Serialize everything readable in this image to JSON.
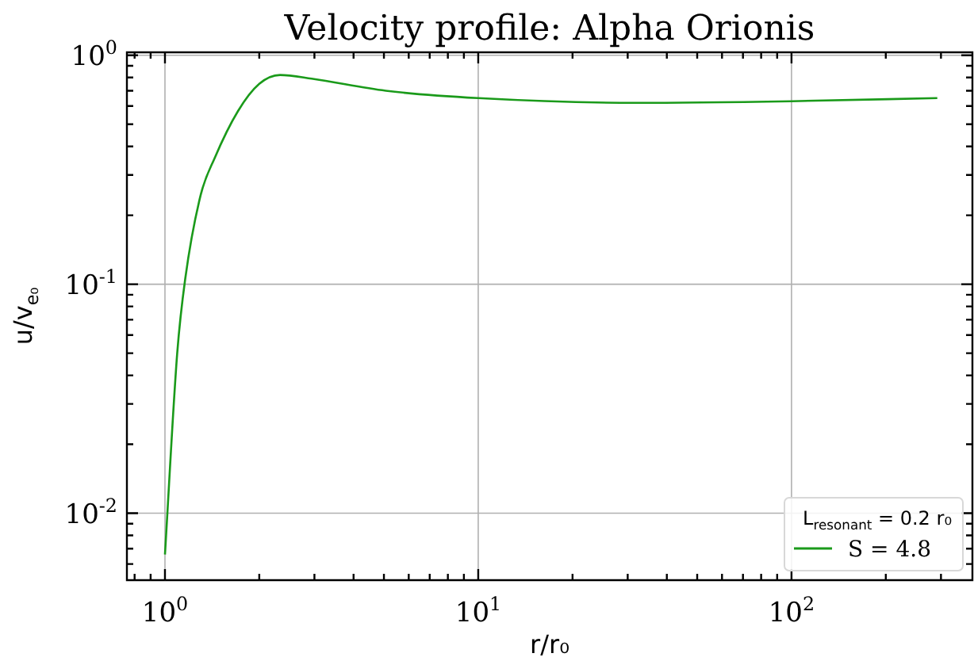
{
  "chart_data": {
    "type": "line",
    "title": "Velocity profile: Alpha Orionis",
    "xlabel": "r/r₀",
    "ylabel": "u/v$_{e₀}$",
    "legend_title": "L$_{resonant}$ = 0.2 r₀",
    "x": [
      1.0,
      1.094,
      1.16,
      1.3,
      1.44,
      1.71,
      2.0,
      2.33,
      2.94,
      5.07,
      10,
      31.6,
      100,
      292
    ],
    "series": [
      {
        "name": "S = 4.8",
        "color": "#1a9a1a",
        "values": [
          0.0066,
          0.0498,
          0.105,
          0.245,
          0.355,
          0.57,
          0.75,
          0.82,
          0.79,
          0.7,
          0.65,
          0.62,
          0.63,
          0.65
        ]
      }
    ],
    "log": "xy",
    "xlim": [
      0.756,
      378
    ],
    "ylim": [
      0.0051,
      1.03
    ],
    "xticks": [
      {
        "value": 0.8,
        "label": null
      },
      {
        "value": 0.9,
        "label": null
      },
      {
        "value": 1,
        "label": "10$^{0}$"
      },
      {
        "value": 2,
        "label": null
      },
      {
        "value": 3,
        "label": null
      },
      {
        "value": 4,
        "label": null
      },
      {
        "value": 5,
        "label": null
      },
      {
        "value": 6,
        "label": null
      },
      {
        "value": 7,
        "label": null
      },
      {
        "value": 8,
        "label": null
      },
      {
        "value": 9,
        "label": null
      },
      {
        "value": 10,
        "label": "10$^{1}$"
      },
      {
        "value": 20,
        "label": null
      },
      {
        "value": 30,
        "label": null
      },
      {
        "value": 40,
        "label": null
      },
      {
        "value": 50,
        "label": null
      },
      {
        "value": 60,
        "label": null
      },
      {
        "value": 70,
        "label": null
      },
      {
        "value": 80,
        "label": null
      },
      {
        "value": 90,
        "label": null
      },
      {
        "value": 100,
        "label": "10$^{2}$"
      },
      {
        "value": 200,
        "label": null
      },
      {
        "value": 300,
        "label": null
      }
    ],
    "yticks": [
      {
        "value": 0.006,
        "label": null
      },
      {
        "value": 0.007,
        "label": null
      },
      {
        "value": 0.008,
        "label": null
      },
      {
        "value": 0.009,
        "label": null
      },
      {
        "value": 0.01,
        "label": "10$^{-2}$"
      },
      {
        "value": 0.02,
        "label": null
      },
      {
        "value": 0.03,
        "label": null
      },
      {
        "value": 0.04,
        "label": null
      },
      {
        "value": 0.05,
        "label": null
      },
      {
        "value": 0.06,
        "label": null
      },
      {
        "value": 0.07,
        "label": null
      },
      {
        "value": 0.08,
        "label": null
      },
      {
        "value": 0.09,
        "label": null
      },
      {
        "value": 0.1,
        "label": "10$^{-1}$"
      },
      {
        "value": 0.2,
        "label": null
      },
      {
        "value": 0.3,
        "label": null
      },
      {
        "value": 0.4,
        "label": null
      },
      {
        "value": 0.5,
        "label": null
      },
      {
        "value": 0.6,
        "label": null
      },
      {
        "value": 0.7,
        "label": null
      },
      {
        "value": 0.8,
        "label": null
      },
      {
        "value": 0.9,
        "label": null
      },
      {
        "value": 1,
        "label": "10$^{0}$"
      }
    ],
    "grid": true,
    "legend": "bottom right",
    "marker": "none",
    "line_style": "solid"
  }
}
